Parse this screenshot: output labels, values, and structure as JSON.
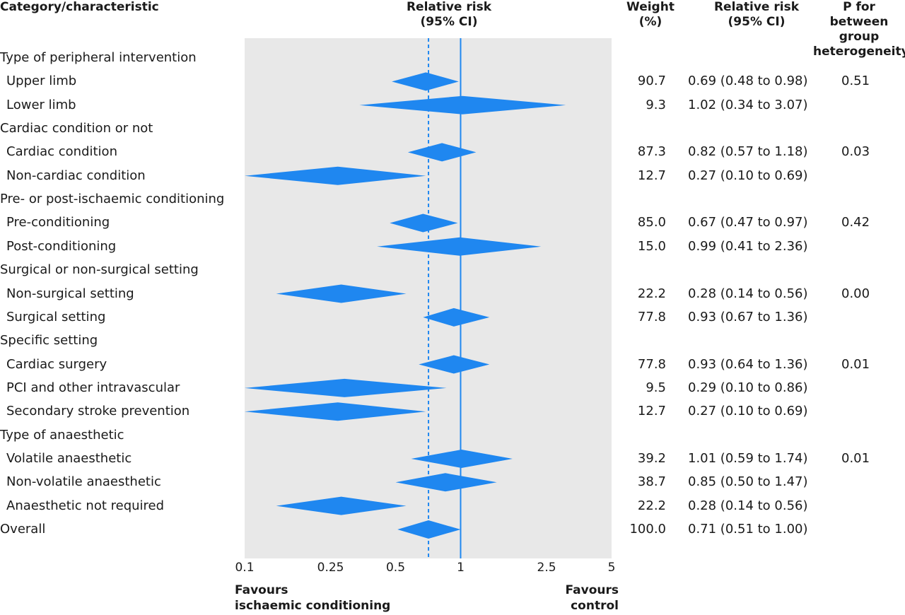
{
  "headers": {
    "category": "Category/characteristic",
    "rr_plot": [
      "Relative risk",
      "(95% CI)"
    ],
    "weight": [
      "Weight",
      "(%)"
    ],
    "rr_text": [
      "Relative risk",
      "(95% CI)"
    ],
    "p": [
      "P for",
      "between group",
      "heterogeneity"
    ]
  },
  "footer": {
    "left": [
      "Favours",
      "ischaemic conditioning"
    ],
    "right": [
      "Favours",
      "control"
    ]
  },
  "colors": {
    "diamond": "#1f87f0",
    "panel": "#e8e8e8",
    "line": "#1f87f0"
  },
  "chart_data": {
    "type": "forest",
    "x_scale": "log",
    "xlim": [
      0.1,
      5
    ],
    "x_ticks": [
      0.1,
      0.25,
      0.5,
      1,
      2.5,
      5
    ],
    "x_tick_labels": [
      "0.1",
      "0.25",
      "0.5",
      "1",
      "2.5",
      "5"
    ],
    "reference_line": 1,
    "overall_line": 0.71,
    "rows": [
      {
        "label": "Type of peripheral intervention",
        "header": true
      },
      {
        "label": "Upper limb",
        "weight": "90.7",
        "rr": 0.69,
        "lo": 0.48,
        "hi": 0.98,
        "ci": "0.69 (0.48 to 0.98)",
        "p": "0.51"
      },
      {
        "label": "Lower limb",
        "weight": "9.3",
        "rr": 1.02,
        "lo": 0.34,
        "hi": 3.07,
        "ci": "1.02 (0.34 to 3.07)",
        "p": ""
      },
      {
        "label": "Cardiac condition or not",
        "header": true
      },
      {
        "label": "Cardiac condition",
        "weight": "87.3",
        "rr": 0.82,
        "lo": 0.57,
        "hi": 1.18,
        "ci": "0.82 (0.57 to 1.18)",
        "p": "0.03"
      },
      {
        "label": "Non-cardiac condition",
        "weight": "12.7",
        "rr": 0.27,
        "lo": 0.1,
        "hi": 0.69,
        "ci": "0.27 (0.10 to 0.69)",
        "p": ""
      },
      {
        "label": "Pre- or post-ischaemic conditioning",
        "header": true
      },
      {
        "label": "Pre-conditioning",
        "weight": "85.0",
        "rr": 0.67,
        "lo": 0.47,
        "hi": 0.97,
        "ci": "0.67 (0.47 to 0.97)",
        "p": "0.42"
      },
      {
        "label": "Post-conditioning",
        "weight": "15.0",
        "rr": 0.99,
        "lo": 0.41,
        "hi": 2.36,
        "ci": "0.99 (0.41 to 2.36)",
        "p": ""
      },
      {
        "label": "Surgical or non-surgical setting",
        "header": true
      },
      {
        "label": "Non-surgical setting",
        "weight": "22.2",
        "rr": 0.28,
        "lo": 0.14,
        "hi": 0.56,
        "ci": "0.28 (0.14 to 0.56)",
        "p": "0.00"
      },
      {
        "label": "Surgical setting",
        "weight": "77.8",
        "rr": 0.93,
        "lo": 0.67,
        "hi": 1.36,
        "ci": "0.93 (0.67 to 1.36)",
        "p": ""
      },
      {
        "label": "Specific setting",
        "header": true
      },
      {
        "label": "Cardiac surgery",
        "weight": "77.8",
        "rr": 0.93,
        "lo": 0.64,
        "hi": 1.36,
        "ci": "0.93 (0.64 to 1.36)",
        "p": "0.01"
      },
      {
        "label": "PCI and other intravascular",
        "weight": "9.5",
        "rr": 0.29,
        "lo": 0.1,
        "hi": 0.86,
        "ci": "0.29 (0.10 to 0.86)",
        "p": ""
      },
      {
        "label": "Secondary stroke prevention",
        "weight": "12.7",
        "rr": 0.27,
        "lo": 0.1,
        "hi": 0.69,
        "ci": "0.27 (0.10 to 0.69)",
        "p": ""
      },
      {
        "label": "Type of anaesthetic",
        "header": true
      },
      {
        "label": "Volatile anaesthetic",
        "weight": "39.2",
        "rr": 1.01,
        "lo": 0.59,
        "hi": 1.74,
        "ci": "1.01 (0.59 to 1.74)",
        "p": "0.01"
      },
      {
        "label": "Non-volatile anaesthetic",
        "weight": "38.7",
        "rr": 0.85,
        "lo": 0.5,
        "hi": 1.47,
        "ci": "0.85 (0.50 to 1.47)",
        "p": ""
      },
      {
        "label": "Anaesthetic not required",
        "weight": "22.2",
        "rr": 0.28,
        "lo": 0.14,
        "hi": 0.56,
        "ci": "0.28 (0.14 to 0.56)",
        "p": ""
      },
      {
        "label": "Overall",
        "overall": true,
        "weight": "100.0",
        "rr": 0.71,
        "lo": 0.51,
        "hi": 1.0,
        "ci": "0.71 (0.51 to 1.00)",
        "p": ""
      }
    ]
  }
}
